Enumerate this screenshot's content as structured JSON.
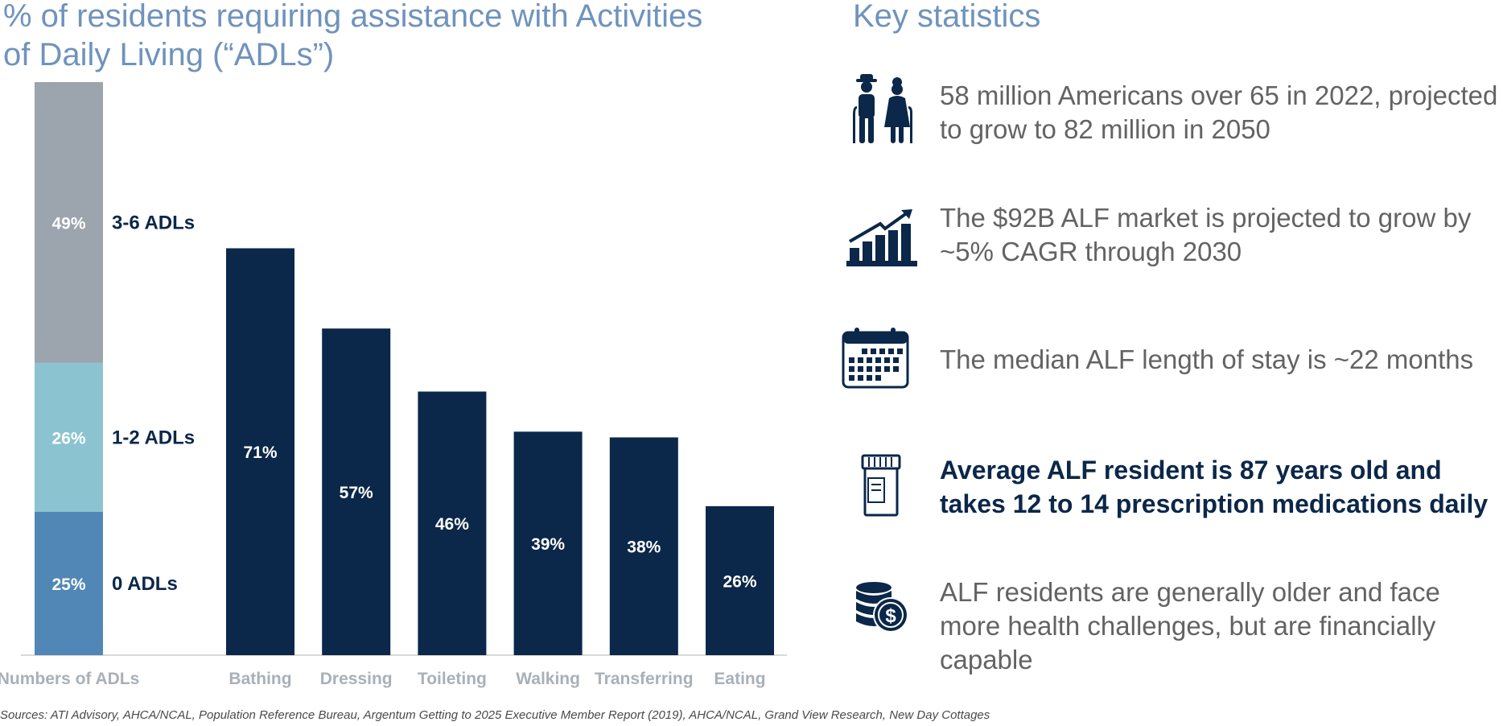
{
  "chart_data": {
    "type": "bar",
    "title": "% of residents requiring assistance with Activities of Daily Living (“ADLs”)",
    "stacked_bar": {
      "category": "Numbers of ADLs",
      "segments": [
        {
          "name": "0 ADLs",
          "value": 25,
          "label": "25%",
          "color": "#5187b6"
        },
        {
          "name": "1-2 ADLs",
          "value": 26,
          "label": "26%",
          "color": "#8cc3d0"
        },
        {
          "name": "3-6 ADLs",
          "value": 49,
          "label": "49%",
          "color": "#9ca4ae"
        }
      ]
    },
    "categories": [
      "Bathing",
      "Dressing",
      "Toileting",
      "Walking",
      "Transferring",
      "Eating"
    ],
    "values": [
      71,
      57,
      46,
      39,
      38,
      26
    ],
    "value_labels": [
      "71%",
      "57%",
      "46%",
      "39%",
      "38%",
      "26%"
    ],
    "bar_color": "#0b2749",
    "ylim": [
      0,
      100
    ],
    "grid": false,
    "legend": "none"
  },
  "stats": {
    "title": "Key statistics",
    "items": [
      {
        "icon": "elderly-couple-icon",
        "text": "58 million Americans over 65 in 2022, projected to grow to 82 million in 2050"
      },
      {
        "icon": "growth-chart-icon",
        "text": "The $92B ALF market is projected to grow by ~5% CAGR through 2030"
      },
      {
        "icon": "calendar-icon",
        "text": "The median ALF length of stay is ~22 months"
      },
      {
        "icon": "prescription-bottle-icon",
        "text": "Average ALF resident is 87 years old and takes 12 to 14 prescription medications daily"
      },
      {
        "icon": "coins-dollar-icon",
        "text": "ALF residents are generally older and face more health challenges, but are financially capable"
      }
    ]
  },
  "sources": "Sources: ATI Advisory, AHCA/NCAL, Population Reference Bureau, Argentum Getting to 2025 Executive Member Report (2019), AHCA/NCAL, Grand View Research, New Day Cottages",
  "colors": {
    "title": "#6f93bd",
    "navy": "#0b2749",
    "text": "#636363",
    "axis_label": "#a9b0b8"
  }
}
